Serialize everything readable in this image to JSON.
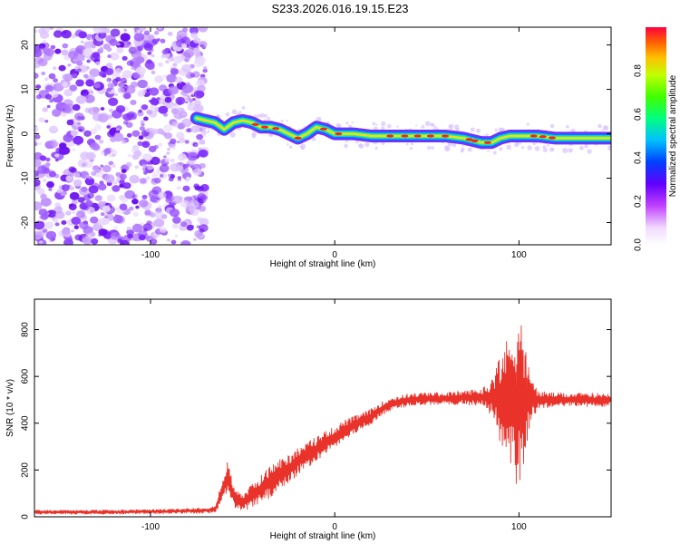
{
  "title": "S233.2026.016.19.15.E23",
  "chart_data": [
    {
      "type": "heatmap",
      "xlabel": "Height of straight line (km)",
      "ylabel": "Frequency (Hz)",
      "xlim": [
        -163,
        150
      ],
      "ylim": [
        -25,
        24
      ],
      "xticks": [
        -100,
        0,
        100
      ],
      "yticks": [
        -20,
        -10,
        0,
        10,
        20
      ],
      "colorbar": {
        "label": "Normalized spectral amplitude",
        "range": [
          0,
          1
        ],
        "ticks": [
          "0.0",
          "0.2",
          "0.4",
          "0.6",
          "0.8"
        ]
      },
      "noise_region_x": [
        -163,
        -73
      ],
      "trace": {
        "x": [
          -75,
          -70,
          -65,
          -60,
          -55,
          -50,
          -45,
          -40,
          -35,
          -30,
          -25,
          -20,
          -15,
          -10,
          -5,
          0,
          10,
          20,
          30,
          40,
          50,
          60,
          70,
          75,
          80,
          85,
          90,
          95,
          100,
          110,
          120,
          130,
          140,
          150
        ],
        "y": [
          3.5,
          3,
          2.5,
          1,
          2.5,
          3,
          2.5,
          1.5,
          1.5,
          1,
          0,
          -1,
          0,
          1.5,
          1,
          0,
          0,
          -0.5,
          -0.5,
          -0.5,
          -0.5,
          -0.5,
          -1,
          -1.5,
          -2,
          -2,
          -1,
          -0.5,
          -0.5,
          -0.5,
          -1,
          -1,
          -1,
          -1
        ]
      }
    },
    {
      "type": "line",
      "xlabel": "Height of straight line (km)",
      "ylabel": "SNR (10 * v/v)",
      "xlim": [
        -163,
        150
      ],
      "ylim": [
        0,
        930
      ],
      "xticks": [
        -100,
        0,
        100
      ],
      "yticks": [
        0,
        200,
        400,
        600,
        800
      ],
      "series": [
        {
          "name": "SNR",
          "color": "#e8322a",
          "x": [
            -163,
            -140,
            -120,
            -100,
            -80,
            -65,
            -60,
            -58,
            -55,
            -50,
            -45,
            -40,
            -35,
            -30,
            -25,
            -20,
            -15,
            -10,
            -5,
            0,
            5,
            10,
            15,
            20,
            25,
            30,
            40,
            50,
            60,
            70,
            80,
            85,
            90,
            95,
            100,
            105,
            110,
            120,
            130,
            140,
            150
          ],
          "values": [
            20,
            20,
            20,
            22,
            25,
            30,
            130,
            180,
            90,
            60,
            90,
            120,
            150,
            180,
            200,
            240,
            260,
            290,
            320,
            340,
            370,
            390,
            410,
            430,
            460,
            480,
            500,
            505,
            505,
            510,
            510,
            510,
            510,
            505,
            500,
            500,
            500,
            500,
            500,
            500,
            500
          ],
          "envelope": [
            10,
            10,
            10,
            10,
            12,
            15,
            60,
            60,
            50,
            40,
            50,
            60,
            70,
            70,
            70,
            60,
            60,
            55,
            50,
            45,
            45,
            40,
            35,
            35,
            30,
            30,
            28,
            28,
            28,
            30,
            40,
            80,
            200,
            280,
            420,
            150,
            40,
            30,
            30,
            30,
            30
          ]
        }
      ]
    }
  ]
}
